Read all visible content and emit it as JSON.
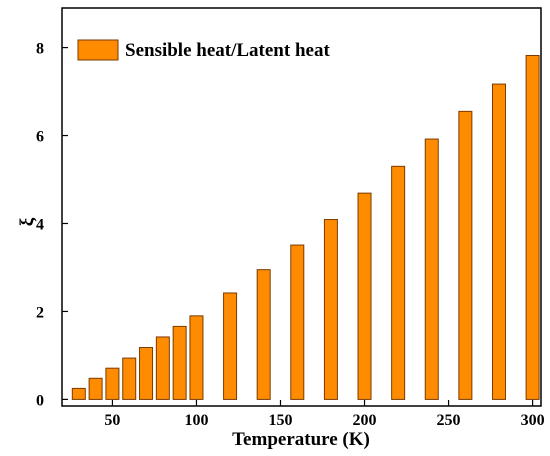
{
  "chart_data": {
    "type": "bar",
    "title": "",
    "xlabel": "Temperature (K)",
    "ylabel": "ξ",
    "xlim": [
      20,
      305
    ],
    "ylim": [
      -0.15,
      8.9
    ],
    "x_ticks": [
      50,
      100,
      150,
      200,
      250,
      300
    ],
    "y_ticks": [
      0,
      2,
      4,
      6,
      8
    ],
    "grid": false,
    "legend": {
      "position": "top-left",
      "entries": [
        "Sensible heat/Latent heat"
      ]
    },
    "series": [
      {
        "name": "Sensible heat/Latent heat",
        "color": "#ff8c00",
        "x": [
          30,
          40,
          50,
          60,
          70,
          80,
          90,
          100,
          120,
          140,
          160,
          180,
          200,
          220,
          240,
          260,
          280,
          300
        ],
        "values": [
          0.25,
          0.48,
          0.71,
          0.94,
          1.18,
          1.42,
          1.66,
          1.9,
          2.42,
          2.95,
          3.51,
          4.09,
          4.69,
          5.3,
          5.92,
          6.55,
          7.17,
          7.82
        ]
      }
    ]
  }
}
